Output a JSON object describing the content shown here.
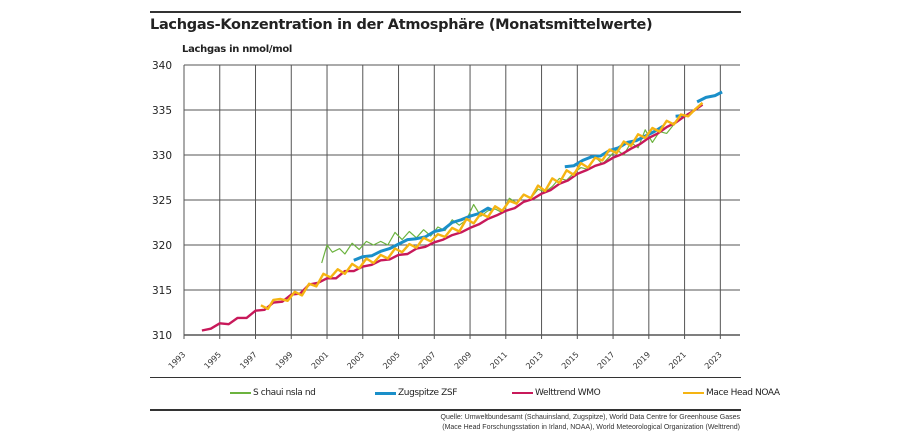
{
  "chart_data": {
    "type": "line",
    "title": "Lachgas-Konzentration in der Atmosphäre (Monatsmittelwerte)",
    "ylabel": "Lachgas in nmol/mol",
    "xlabel": "",
    "xlim": [
      1993,
      2024.1
    ],
    "ylim": [
      310,
      340
    ],
    "xticks": [
      "1993",
      "1995",
      "1997",
      "1999",
      "2001",
      "2003",
      "2005",
      "2007",
      "2009",
      "2011",
      "2013",
      "2015",
      "2017",
      "2019",
      "2021",
      "2023"
    ],
    "yticks": [
      "310",
      "315",
      "320",
      "325",
      "330",
      "335",
      "340"
    ],
    "grid": true,
    "legend_position": "bottom",
    "series": [
      {
        "name": "S chaui nsla nd",
        "color": "#6cb33f",
        "width": 1.2,
        "x": [
          2000.7,
          2001.0,
          2001.3,
          2001.7,
          2002.0,
          2002.4,
          2002.8,
          2003.2,
          2003.6,
          2004.0,
          2004.4,
          2004.8,
          2005.2,
          2005.6,
          2006.0,
          2006.4,
          2006.8,
          2007.2,
          2007.6,
          2008.0,
          2008.4,
          2008.8,
          2009.2,
          2009.6,
          2010.0,
          2010.4,
          2010.8,
          2011.2,
          2011.6,
          2012.0,
          2012.4,
          2012.8,
          2013.2,
          2013.6,
          2014.0,
          2014.4,
          2014.8,
          2015.2,
          2015.6,
          2016.0,
          2016.4,
          2016.8,
          2017.2,
          2017.6,
          2018.0,
          2018.4,
          2018.8,
          2019.2,
          2019.6,
          2020.0,
          2020.4
        ],
        "y": [
          318.0,
          320.0,
          319.2,
          319.6,
          319.0,
          320.2,
          319.5,
          320.4,
          320.0,
          320.4,
          320.0,
          321.4,
          320.6,
          321.5,
          320.8,
          321.7,
          321.0,
          322.0,
          321.6,
          322.8,
          322.2,
          322.8,
          324.5,
          323.2,
          323.8,
          324.0,
          323.6,
          325.2,
          324.7,
          325.6,
          325.2,
          326.2,
          325.9,
          326.5,
          327.4,
          327.2,
          328.0,
          328.6,
          328.4,
          329.8,
          329.0,
          329.8,
          330.6,
          330.0,
          331.4,
          330.8,
          332.8,
          331.4,
          332.6,
          332.4,
          333.4
        ]
      },
      {
        "name": "Zugspitze ZSF",
        "color": "#1a8fc9",
        "width": 3,
        "x": [
          2002.5,
          2003.0,
          2003.5,
          2004.0,
          2004.5,
          2005.0,
          2005.5,
          2006.0,
          2006.5,
          2007.0,
          2007.5,
          2008.0,
          2008.5,
          2009.0,
          2009.5,
          2010.0,
          2010.2,
          null,
          2014.3,
          2014.8,
          2015.3,
          2015.8,
          2016.3,
          2016.8,
          2017.3,
          2017.8,
          2018.3,
          2018.8,
          2019.3,
          2019.8,
          null,
          2020.5,
          2021.0,
          null,
          2021.7,
          2022.2,
          2022.7,
          2023.1
        ],
        "y": [
          318.3,
          318.7,
          318.8,
          319.3,
          319.6,
          320.1,
          320.6,
          320.7,
          320.9,
          321.5,
          321.7,
          322.5,
          322.8,
          323.2,
          323.5,
          324.1,
          323.9,
          null,
          328.7,
          328.8,
          329.4,
          329.8,
          329.9,
          330.5,
          330.8,
          331.4,
          331.6,
          332.1,
          332.6,
          333.2,
          null,
          334.3,
          334.4,
          null,
          335.9,
          336.4,
          336.6,
          337.0
        ]
      },
      {
        "name": "Welttrend WMO",
        "color": "#c8195a",
        "width": 2.4,
        "x": [
          1994.0,
          1994.5,
          1995.0,
          1995.5,
          1996.0,
          1996.5,
          1997.0,
          1997.5,
          1998.0,
          1998.5,
          1999.0,
          1999.5,
          2000.0,
          2000.5,
          2001.0,
          2001.5,
          2002.0,
          2002.5,
          2003.0,
          2003.5,
          2004.0,
          2004.5,
          2005.0,
          2005.5,
          2006.0,
          2006.5,
          2007.0,
          2007.5,
          2008.0,
          2008.5,
          2009.0,
          2009.5,
          2010.0,
          2010.5,
          2011.0,
          2011.5,
          2012.0,
          2012.5,
          2013.0,
          2013.5,
          2014.0,
          2014.5,
          2015.0,
          2015.5,
          2016.0,
          2016.5,
          2017.0,
          2017.5,
          2018.0,
          2018.5,
          2019.0,
          2019.5,
          2020.0,
          2020.5,
          2021.0,
          2021.5,
          2022.0
        ],
        "y": [
          310.5,
          310.7,
          311.3,
          311.2,
          311.9,
          311.9,
          312.7,
          312.8,
          313.6,
          313.7,
          314.5,
          314.6,
          315.6,
          315.8,
          316.3,
          316.3,
          317.1,
          317.1,
          317.6,
          317.8,
          318.3,
          318.4,
          318.9,
          319.0,
          319.6,
          319.8,
          320.3,
          320.6,
          321.1,
          321.4,
          321.9,
          322.3,
          322.9,
          323.3,
          323.8,
          324.1,
          324.8,
          325.1,
          325.7,
          326.1,
          326.8,
          327.2,
          327.9,
          328.3,
          328.8,
          329.1,
          329.7,
          330.1,
          330.7,
          331.2,
          331.9,
          332.4,
          333.1,
          333.6,
          334.3,
          334.9,
          335.6
        ]
      },
      {
        "name": "Mace Head NOAA",
        "color": "#f5b412",
        "width": 2.4,
        "x": [
          1997.3,
          1997.7,
          1998.0,
          1998.4,
          1998.8,
          1999.2,
          1999.6,
          2000.0,
          2000.4,
          2000.8,
          2001.2,
          2001.6,
          2002.0,
          2002.4,
          2002.8,
          2003.2,
          2003.6,
          2004.0,
          2004.4,
          2004.8,
          2005.2,
          2005.6,
          2006.0,
          2006.4,
          2006.8,
          2007.2,
          2007.6,
          2008.0,
          2008.4,
          2008.8,
          2009.2,
          2009.6,
          2010.0,
          2010.4,
          2010.8,
          2011.2,
          2011.6,
          2012.0,
          2012.4,
          2012.8,
          2013.2,
          2013.6,
          2014.0,
          2014.4,
          2014.8,
          2015.2,
          2015.6,
          2016.0,
          2016.4,
          2016.8,
          2017.2,
          2017.6,
          2018.0,
          2018.4,
          2018.8,
          2019.2,
          2019.6,
          2020.0,
          2020.4,
          2020.8,
          2021.2,
          2021.6,
          2022.0
        ],
        "y": [
          313.3,
          312.9,
          313.9,
          314.0,
          313.8,
          314.8,
          314.4,
          315.7,
          315.4,
          316.8,
          316.4,
          317.3,
          316.8,
          317.9,
          317.4,
          318.5,
          318.0,
          318.9,
          318.5,
          319.6,
          319.2,
          320.1,
          319.7,
          320.8,
          320.4,
          321.2,
          320.9,
          321.9,
          321.5,
          322.9,
          322.4,
          323.5,
          323.1,
          324.3,
          323.8,
          324.9,
          324.6,
          325.6,
          325.2,
          326.6,
          326.0,
          327.4,
          326.9,
          328.3,
          327.8,
          329.1,
          328.6,
          329.7,
          329.4,
          330.6,
          330.2,
          331.5,
          331.0,
          332.3,
          331.9,
          333.0,
          332.6,
          333.8,
          333.4,
          334.5,
          334.3,
          335.1,
          335.8
        ]
      }
    ]
  },
  "source": [
    "Quelle: Umweltbundesamt (Schauinsland, Zugspitze), World Data Centre for Greenhouse Gases",
    "(Mace Head Forschungsstation in Irland, NOAA), World Meteorological Organization (Welttrend)"
  ]
}
